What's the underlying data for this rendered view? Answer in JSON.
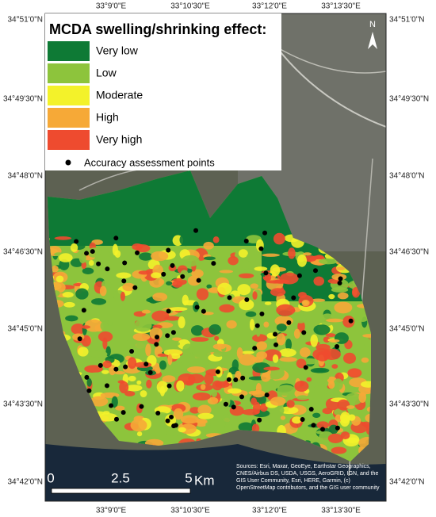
{
  "map": {
    "legend": {
      "title": "MCDA swelling/shrinking effect:",
      "items": [
        {
          "label": "Very low",
          "color": "#0e7a35"
        },
        {
          "label": "Low",
          "color": "#8dc43c"
        },
        {
          "label": "Moderate",
          "color": "#f3f22a"
        },
        {
          "label": "High",
          "color": "#f6a937"
        },
        {
          "label": "Very high",
          "color": "#ee4b2f"
        }
      ],
      "points_label": "Accuracy assessment points"
    },
    "top_labels": [
      "33°9'0\"E",
      "33°10'30\"E",
      "33°12'0\"E",
      "33°13'30\"E"
    ],
    "bottom_labels": [
      "33°9'0\"E",
      "33°10'30\"E",
      "33°12'0\"E",
      "33°13'30\"E"
    ],
    "left_labels": [
      "34°51'0\"N",
      "34°49'30\"N",
      "34°48'0\"N",
      "34°46'30\"N",
      "34°45'0\"N",
      "34°43'30\"N",
      "34°42'0\"N"
    ],
    "right_labels": [
      "34°51'0\"N",
      "34°49'30\"N",
      "34°48'0\"N",
      "34°46'30\"N",
      "34°45'0\"N",
      "34°43'30\"N",
      "34°42'0\"N"
    ],
    "scale": {
      "labels": [
        "0",
        "2.5",
        "5"
      ],
      "unit": "Km"
    },
    "north": "N",
    "attribution": "Sources: Esri, Maxar, GeoEye, Earthstar Geographics, CNES/Airbus DS, USDA, USGS, AeroGRID, IGN, and the GIS User Community, Esri, HERE, Garmin, (c) OpenStreetMap contributors, and the GIS user community"
  }
}
